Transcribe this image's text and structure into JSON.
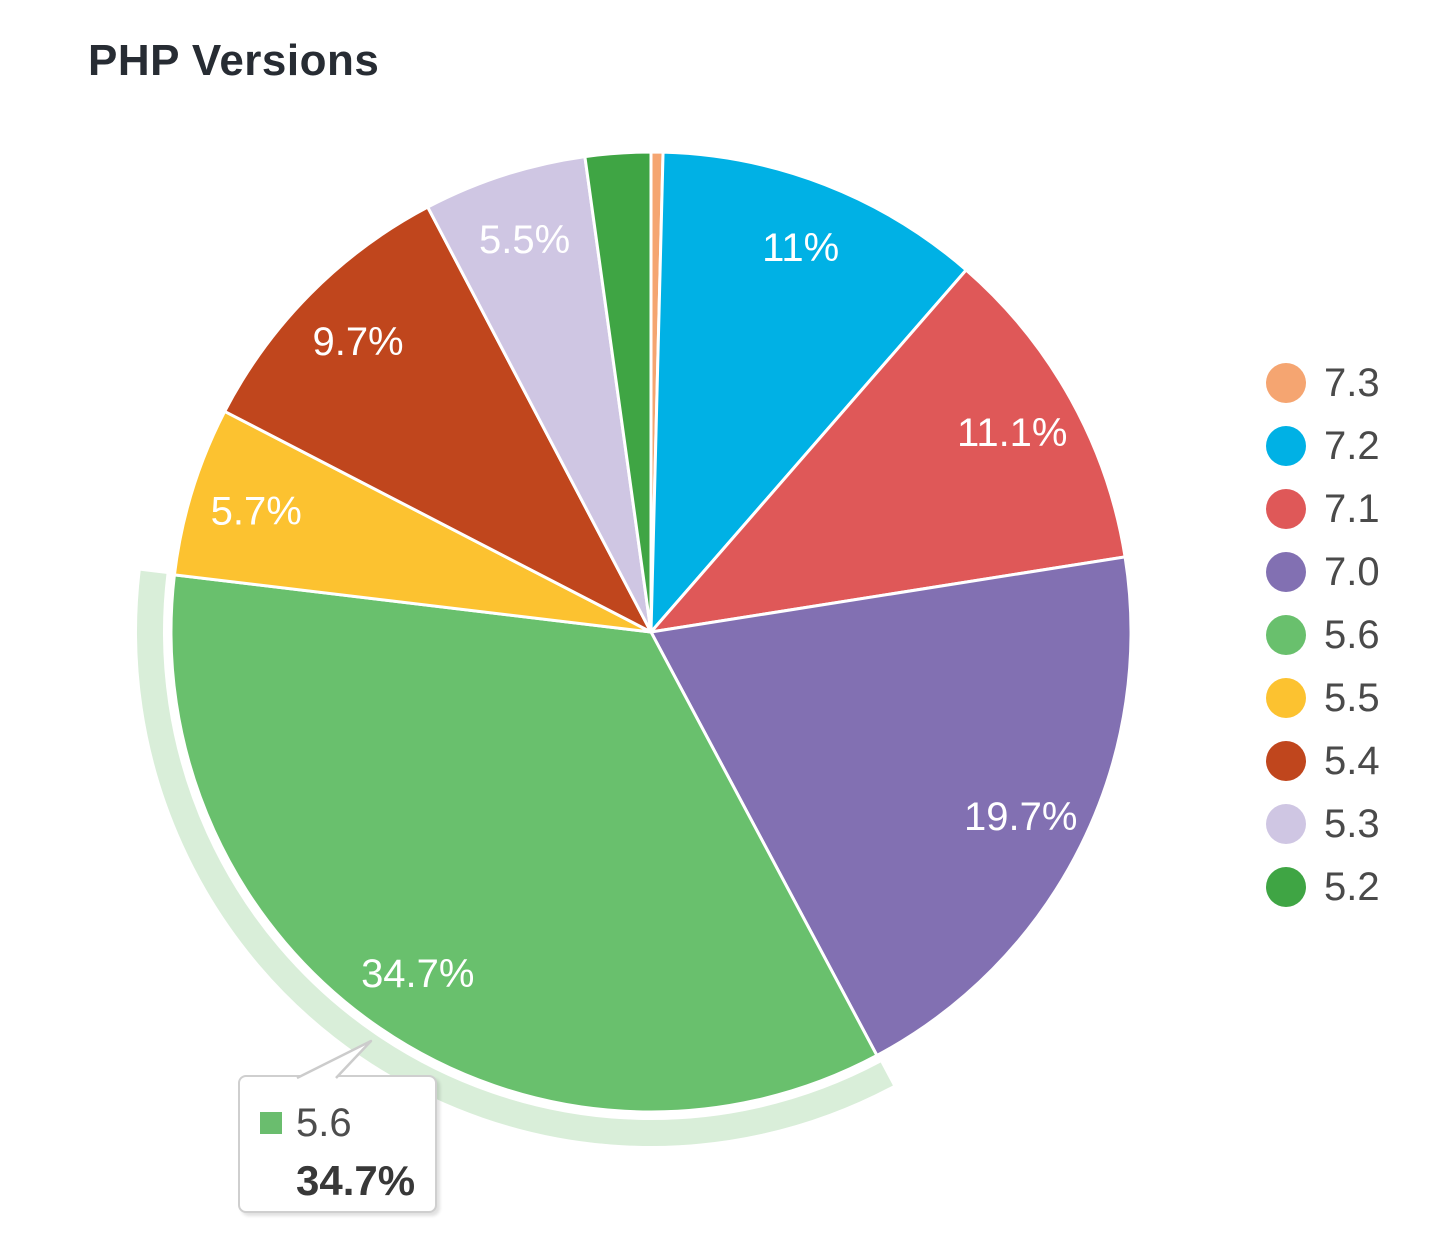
{
  "chart_data": {
    "type": "pie",
    "title": "PHP Versions",
    "unit": "%",
    "start_angle_deg": 0,
    "direction": "clockwise",
    "legend_position": "right",
    "slice_label_color": "#ffffff",
    "slice_border_color": "#ffffff",
    "selection_halo_color": "#d9eed9",
    "slices": [
      {
        "label": "7.3",
        "value": 0.4,
        "display": "",
        "color": "#f5a571",
        "selected": false
      },
      {
        "label": "7.2",
        "value": 11.0,
        "display": "11%",
        "color": "#00b1e5",
        "selected": false
      },
      {
        "label": "7.1",
        "value": 11.1,
        "display": "11.1%",
        "color": "#df5858",
        "selected": false
      },
      {
        "label": "7.0",
        "value": 19.7,
        "display": "19.7%",
        "color": "#8270b2",
        "selected": false
      },
      {
        "label": "5.6",
        "value": 34.7,
        "display": "34.7%",
        "color": "#69c06d",
        "selected": true
      },
      {
        "label": "5.5",
        "value": 5.7,
        "display": "5.7%",
        "color": "#fcc230",
        "selected": false
      },
      {
        "label": "5.4",
        "value": 9.7,
        "display": "9.7%",
        "color": "#c0461d",
        "selected": false
      },
      {
        "label": "5.3",
        "value": 5.5,
        "display": "5.5%",
        "color": "#cfc6e3",
        "selected": false
      },
      {
        "label": "5.2",
        "value": 2.2,
        "display": "",
        "color": "#3fa544",
        "selected": false
      }
    ]
  },
  "tooltip": {
    "label": "5.6",
    "value": "34.7%",
    "swatch_color": "#6abd6e"
  }
}
